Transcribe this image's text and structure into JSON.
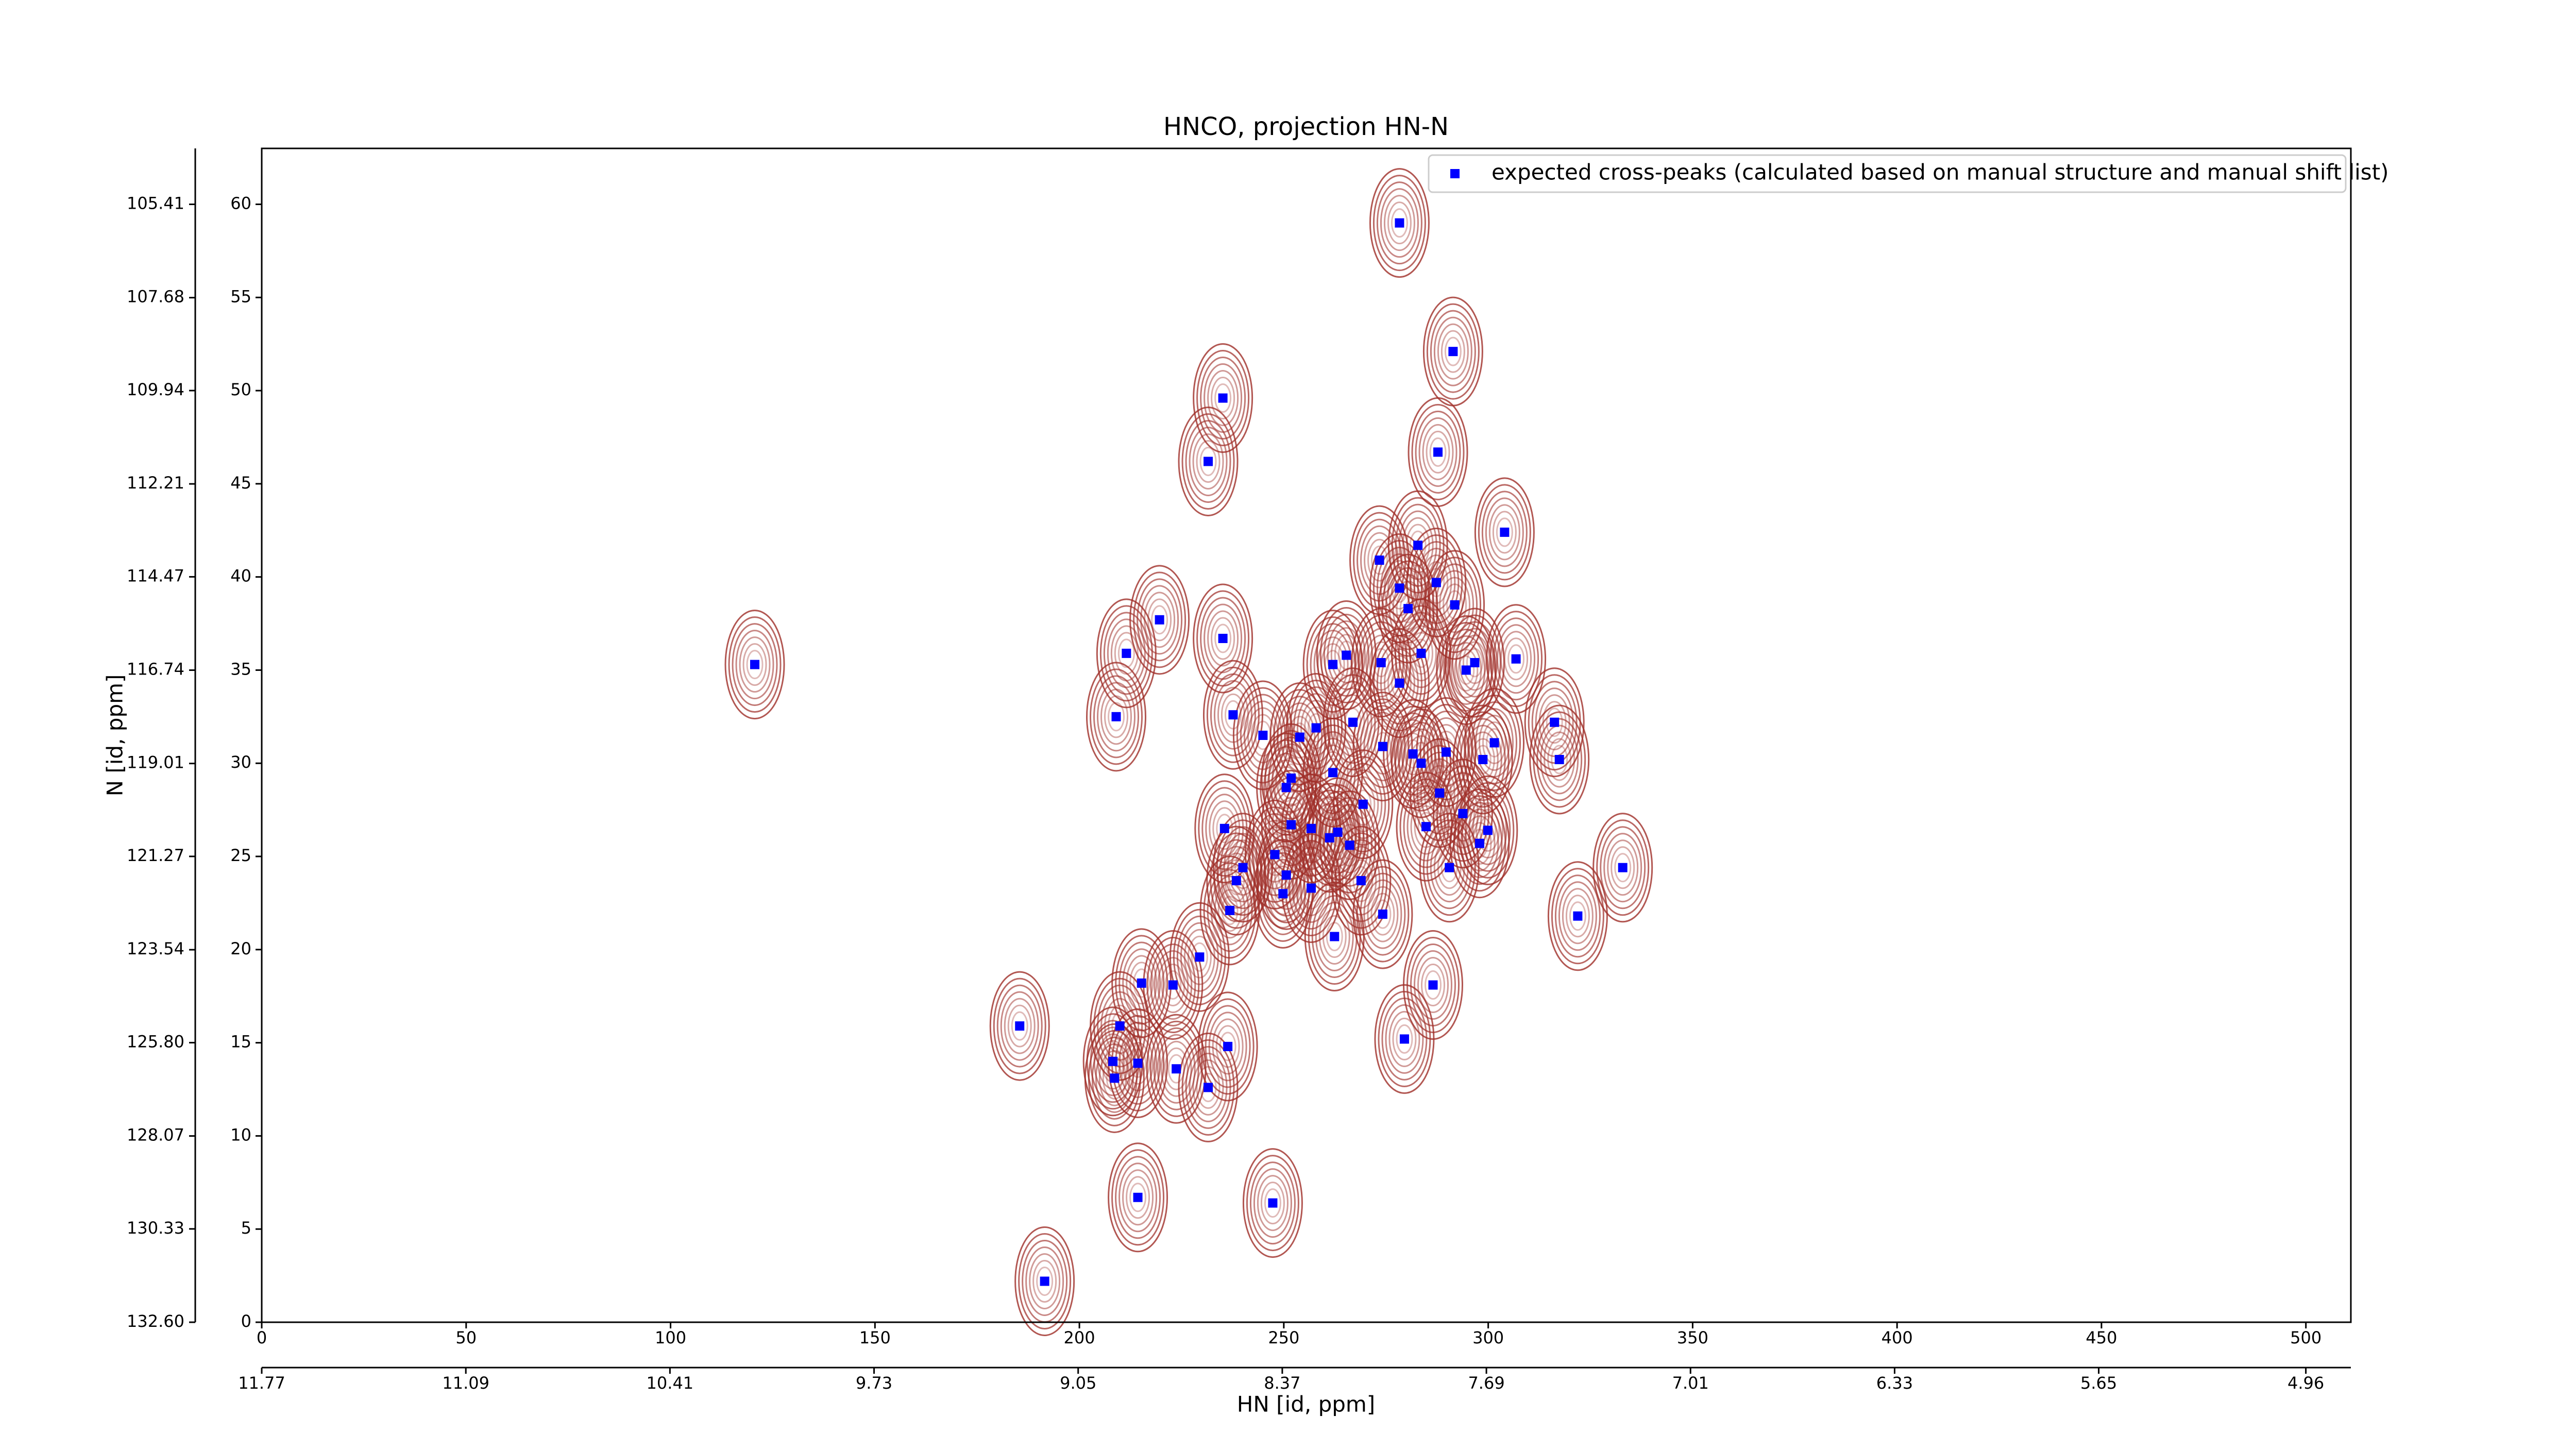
{
  "chart_data": {
    "type": "scatter",
    "title": "HNCO, projection HN-N",
    "x_label": "HN [id, ppm]",
    "y_label": "N [id, ppm]",
    "xlim": [
      0,
      511
    ],
    "ylim": [
      0,
      63
    ],
    "xticks": [
      0,
      50,
      100,
      150,
      200,
      250,
      300,
      350,
      400,
      450,
      500
    ],
    "yticks": [
      0,
      5,
      10,
      15,
      20,
      25,
      30,
      35,
      40,
      45,
      50,
      55,
      60
    ],
    "x2lim": [
      11.77,
      4.81
    ],
    "x2ticks": [
      11.77,
      11.09,
      10.41,
      9.73,
      9.05,
      8.37,
      7.69,
      7.01,
      6.33,
      5.65,
      4.96
    ],
    "y2lim": [
      132.6,
      104.05
    ],
    "y2ticks": [
      {
        "value": 132.6,
        "label": "132.60"
      },
      130.33,
      128.07,
      {
        "value": 125.8,
        "label": "125.80"
      },
      123.54,
      121.27,
      119.01,
      116.74,
      114.47,
      112.21,
      109.94,
      107.68,
      105.41
    ],
    "legend": "upper right",
    "contour_color": "#a0302a",
    "series": [
      {
        "name": "expected cross-peaks (calculated based on manual structure and manual shift list)",
        "color": "#0000ff",
        "x": [
          278.3,
          291.4,
          235.1,
          231.5,
          287.7,
          304.0,
          273.4,
          282.8,
          287.3,
          278.3,
          280.4,
          291.8,
          265.3,
          262.0,
          273.8,
          278.3,
          283.6,
          294.6,
          296.7,
          306.8,
          211.5,
          219.6,
          235.1,
          120.6,
          209.0,
          237.6,
          244.9,
          253.9,
          257.9,
          266.9,
          274.2,
          281.6,
          283.6,
          289.7,
          298.7,
          301.5,
          316.2,
          317.4,
          251.8,
          262.0,
          250.6,
          269.4,
          288.1,
          293.8,
          299.9,
          297.9,
          284.8,
          235.5,
          251.8,
          256.7,
          261.2,
          263.2,
          266.1,
          247.8,
          250.6,
          240.0,
          238.4,
          268.9,
          274.2,
          290.5,
          236.8,
          249.8,
          256.7,
          262.4,
          332.9,
          321.9,
          229.4,
          222.9,
          215.2,
          209.9,
          185.4,
          236.3,
          208.2,
          214.3,
          223.7,
          231.5,
          208.6,
          286.5,
          279.5,
          214.3,
          247.3,
          191.5
        ],
        "values": [
          59.0,
          52.1,
          49.6,
          46.2,
          46.7,
          42.4,
          40.9,
          41.7,
          39.7,
          39.4,
          38.3,
          38.5,
          35.8,
          35.3,
          35.4,
          34.3,
          35.9,
          35.0,
          35.4,
          35.6,
          35.9,
          37.7,
          36.7,
          35.3,
          32.5,
          32.6,
          31.5,
          31.4,
          31.9,
          32.2,
          30.9,
          30.5,
          30.0,
          30.6,
          30.2,
          31.1,
          32.2,
          30.2,
          29.2,
          29.5,
          28.7,
          27.8,
          28.4,
          27.3,
          26.4,
          25.7,
          26.6,
          26.5,
          26.7,
          26.5,
          26.0,
          26.3,
          25.6,
          25.1,
          24.0,
          24.4,
          23.7,
          23.7,
          21.9,
          24.4,
          22.1,
          23.0,
          23.3,
          20.7,
          24.4,
          21.8,
          19.6,
          18.1,
          18.2,
          15.9,
          15.9,
          14.8,
          14.0,
          13.9,
          13.6,
          12.6,
          13.1,
          18.1,
          15.2,
          6.7,
          6.4,
          2.2
        ]
      }
    ]
  }
}
